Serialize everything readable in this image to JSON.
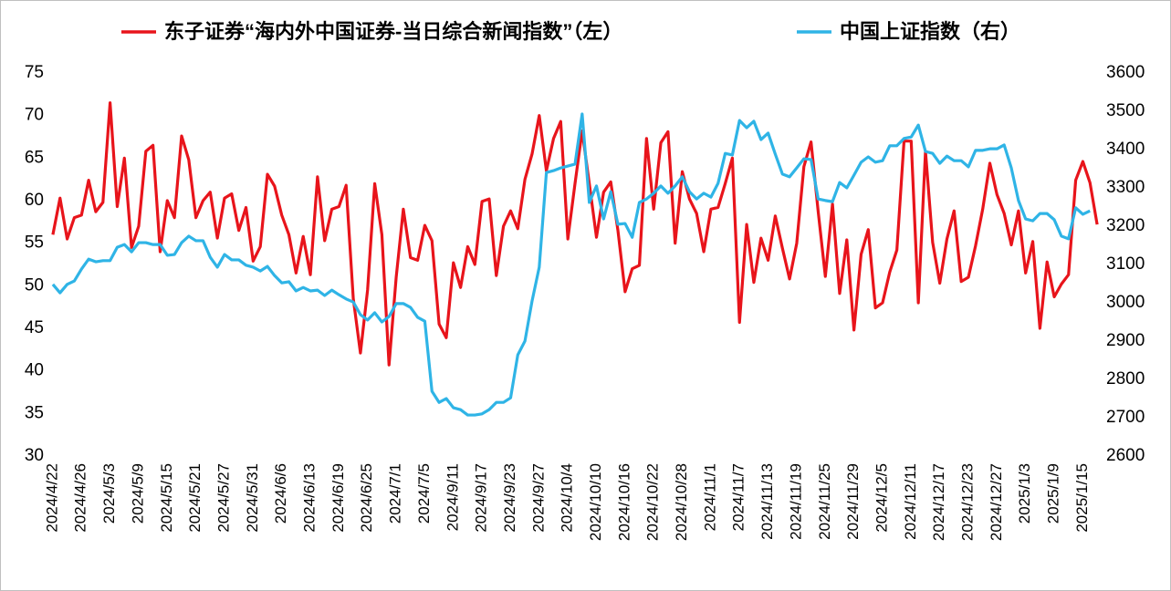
{
  "chart_data": {
    "type": "line",
    "legend": "top",
    "grid": false,
    "categories": [
      "2024/4/22",
      null,
      null,
      null,
      "2024/4/26",
      null,
      null,
      null,
      "2024/5/3",
      null,
      null,
      null,
      "2024/5/9",
      null,
      null,
      null,
      "2024/5/15",
      null,
      null,
      null,
      "2024/5/21",
      null,
      null,
      null,
      "2024/5/27",
      null,
      null,
      null,
      "2024/5/31",
      null,
      null,
      null,
      "2024/6/6",
      null,
      null,
      null,
      "2024/6/13",
      null,
      null,
      null,
      "2024/6/19",
      null,
      null,
      null,
      "2024/6/25",
      null,
      null,
      null,
      "2024/7/1",
      null,
      null,
      null,
      "2024/7/5",
      null,
      null,
      null,
      "2024/9/11",
      null,
      null,
      null,
      "2024/9/17",
      null,
      null,
      null,
      "2024/9/23",
      null,
      null,
      null,
      "2024/9/27",
      null,
      null,
      null,
      "2024/10/4",
      null,
      null,
      null,
      "2024/10/10",
      null,
      null,
      null,
      "2024/10/16",
      null,
      null,
      null,
      "2024/10/22",
      null,
      null,
      null,
      "2024/10/28",
      null,
      null,
      null,
      "2024/11/1",
      null,
      null,
      null,
      "2024/11/7",
      null,
      null,
      null,
      "2024/11/13",
      null,
      null,
      null,
      "2024/11/19",
      null,
      null,
      null,
      "2024/11/25",
      null,
      null,
      null,
      "2024/11/29",
      null,
      null,
      null,
      "2024/12/5",
      null,
      null,
      null,
      "2024/12/11",
      null,
      null,
      null,
      "2024/12/17",
      null,
      null,
      null,
      "2024/12/23",
      null,
      null,
      null,
      "2024/12/27",
      null,
      null,
      null,
      "2025/1/3",
      null,
      null,
      null,
      "2025/1/9",
      null,
      null,
      null,
      "2025/1/15",
      null,
      null
    ],
    "series": [
      {
        "name": "东子证券“海内外中国证券-当日综合新闻指数”（左）",
        "color": "#e8141b",
        "axis": "y",
        "values": [
          56,
          60.3,
          55.5,
          58,
          58.3,
          62.4,
          58.7,
          59.8,
          71.5,
          59.3,
          65,
          54.5,
          57,
          65.8,
          66.5,
          54,
          60,
          58,
          67.6,
          64.8,
          58,
          60,
          61,
          55.6,
          60.3,
          60.8,
          56.5,
          59.2,
          52.9,
          54.6,
          63.1,
          61.7,
          58.3,
          56,
          51.5,
          55.8,
          51.3,
          62.8,
          55.3,
          59,
          59.3,
          61.8,
          48.5,
          42.1,
          49.5,
          62,
          56,
          40.7,
          51,
          59,
          53.3,
          53,
          57.1,
          55.3,
          45.5,
          43.9,
          52.7,
          49.8,
          54.6,
          52.5,
          59.9,
          60.2,
          51.2,
          57,
          58.8,
          56.7,
          62.5,
          65.5,
          70,
          63.5,
          67.3,
          69.3,
          55.5,
          62,
          68.2,
          62,
          55.7,
          61,
          62.2,
          56.5,
          49.3,
          52,
          52.4,
          67.3,
          59,
          66.8,
          68.1,
          55,
          63.4,
          60.2,
          58.5,
          54,
          59,
          59.2,
          62,
          65,
          45.7,
          57.2,
          50.4,
          55.6,
          53,
          58.2,
          54.4,
          50.8,
          55,
          64,
          66.9,
          58.7,
          51.1,
          59.6,
          49.1,
          55.4,
          44.8,
          53.7,
          56.6,
          47.4,
          48,
          51.6,
          54.2,
          67,
          67,
          48,
          65.8,
          55.1,
          50.3,
          55.5,
          58.8,
          50.5,
          51,
          54.7,
          59,
          64.4,
          60.7,
          58.5,
          54.8,
          58.8,
          51.5,
          55.2,
          45,
          52.8,
          48.7,
          50.2,
          51.3,
          62.4,
          64.6,
          62.1,
          57.2
        ]
      },
      {
        "name": "中国上证指数（右）",
        "color": "#2fb4e6",
        "axis": "y2",
        "values": [
          3048,
          3026,
          3048,
          3057,
          3088,
          3114,
          3107,
          3110,
          3110,
          3145,
          3152,
          3133,
          3157,
          3157,
          3152,
          3152,
          3124,
          3126,
          3157,
          3174,
          3162,
          3162,
          3119,
          3093,
          3126,
          3112,
          3112,
          3098,
          3093,
          3083,
          3095,
          3071,
          3052,
          3055,
          3031,
          3040,
          3031,
          3033,
          3019,
          3033,
          3021,
          3010,
          3002,
          2969,
          2955,
          2974,
          2950,
          2964,
          2998,
          2998,
          2988,
          2962,
          2952,
          2769,
          2740,
          2750,
          2726,
          2721,
          2707,
          2707,
          2710,
          2721,
          2740,
          2740,
          2752,
          2864,
          2900,
          3005,
          3093,
          3340,
          3345,
          3352,
          3357,
          3362,
          3493,
          3262,
          3305,
          3219,
          3290,
          3205,
          3207,
          3171,
          3262,
          3271,
          3286,
          3305,
          3286,
          3305,
          3329,
          3290,
          3271,
          3286,
          3276,
          3312,
          3390,
          3386,
          3476,
          3457,
          3474,
          3426,
          3443,
          3388,
          3336,
          3329,
          3352,
          3376,
          3374,
          3271,
          3267,
          3264,
          3314,
          3300,
          3333,
          3367,
          3381,
          3367,
          3371,
          3410,
          3410,
          3429,
          3433,
          3464,
          3395,
          3390,
          3364,
          3383,
          3371,
          3371,
          3355,
          3398,
          3398,
          3402,
          3402,
          3412,
          3352,
          3267,
          3219,
          3214,
          3233,
          3233,
          3217,
          3174,
          3167,
          3248,
          3231,
          3240,
          null
        ]
      }
    ],
    "ylim": [
      30,
      75
    ],
    "yticks": [
      30,
      35,
      40,
      45,
      50,
      55,
      60,
      65,
      70,
      75
    ],
    "y2lim": [
      2600,
      3600
    ],
    "y2ticks": [
      2600,
      2700,
      2800,
      2900,
      3000,
      3100,
      3200,
      3300,
      3400,
      3500,
      3600
    ]
  }
}
